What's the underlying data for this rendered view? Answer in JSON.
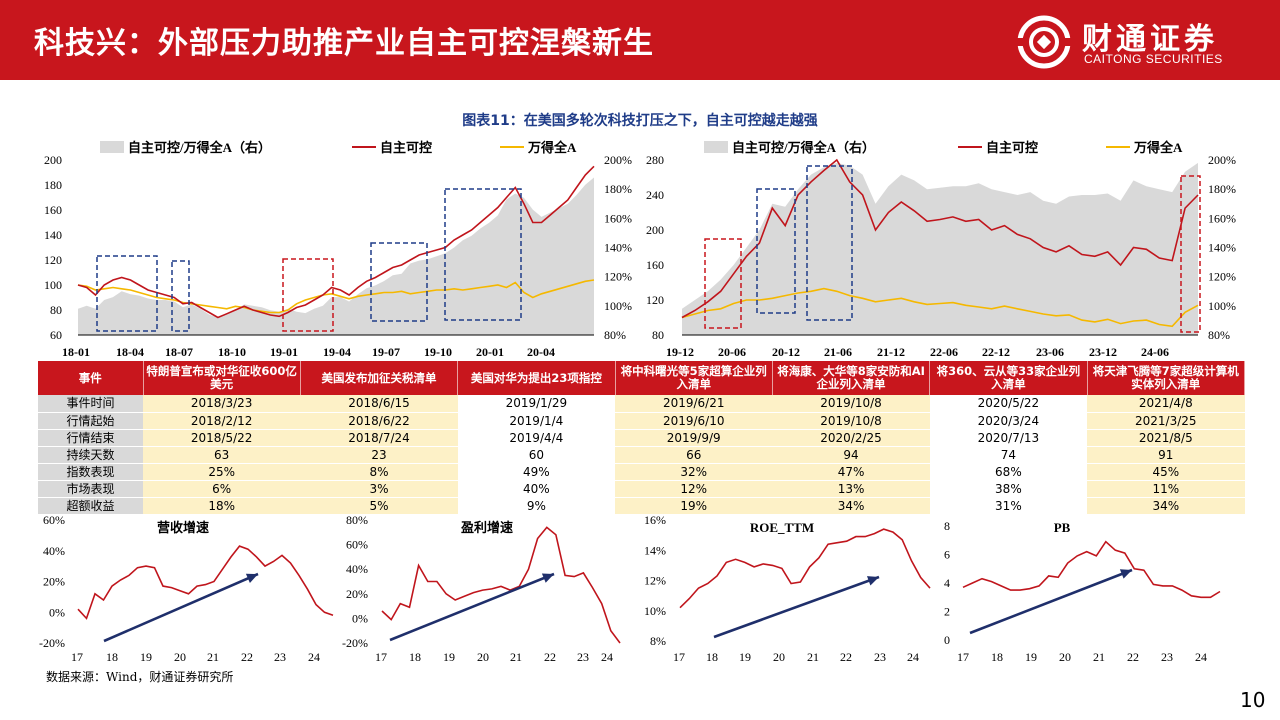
{
  "header": {
    "title": "科技兴：外部压力助推产业自主可控涅槃新生",
    "logo_text": "财通证券",
    "logo_subtext": "CAITONG SECURITIES",
    "brand_color": "#c8161d"
  },
  "figure_title": "图表11：在美国多轮次科技打压之下，自主可控越走越强",
  "chart_data": [
    {
      "type": "line",
      "left_axis": {
        "ticks": [
          "200",
          "180",
          "160",
          "140",
          "120",
          "100",
          "80",
          "60"
        ],
        "ylim": [
          60,
          200
        ]
      },
      "right_axis": {
        "ticks": [
          "200%",
          "180%",
          "160%",
          "140%",
          "120%",
          "100%",
          "80%"
        ],
        "ylim": [
          80,
          200
        ]
      },
      "x_ticks": [
        "18-01",
        "18-04",
        "18-07",
        "18-10",
        "19-01",
        "19-04",
        "19-07",
        "19-10",
        "20-01",
        "20-04"
      ],
      "legend": [
        "自主可控/万得全A（右）",
        "自主可控",
        "万得全A"
      ],
      "series": [
        {
          "name": "自主可控",
          "color": "#c0151c",
          "values": [
            100,
            98,
            92,
            100,
            104,
            106,
            104,
            100,
            96,
            94,
            92,
            90,
            85,
            86,
            82,
            78,
            74,
            77,
            80,
            83,
            80,
            78,
            76,
            75,
            78,
            82,
            84,
            88,
            92,
            98,
            96,
            92,
            98,
            103,
            106,
            110,
            114,
            116,
            120,
            124,
            126,
            128,
            130,
            136,
            140,
            144,
            150,
            156,
            162,
            170,
            178,
            165,
            150,
            150,
            156,
            162,
            168,
            178,
            188,
            195
          ]
        },
        {
          "name": "万得全A",
          "color": "#f5b800",
          "values": [
            100,
            99,
            96,
            97,
            98,
            97,
            96,
            94,
            92,
            90,
            89,
            88,
            86,
            85,
            84,
            83,
            82,
            81,
            83,
            82,
            80,
            79,
            78,
            78,
            80,
            85,
            88,
            90,
            92,
            93,
            91,
            89,
            91,
            92,
            93,
            94,
            94,
            95,
            93,
            94,
            95,
            96,
            96,
            97,
            96,
            97,
            98,
            99,
            100,
            98,
            102,
            94,
            90,
            93,
            95,
            97,
            99,
            101,
            103,
            104
          ]
        },
        {
          "name": "自主可控/万得全A（右）",
          "color": "#d9d9d9",
          "values": [
            98,
            100,
            98,
            104,
            106,
            110,
            108,
            107,
            105,
            104,
            104,
            103,
            99,
            101,
            98,
            94,
            92,
            95,
            97,
            101,
            100,
            99,
            97,
            96,
            98,
            96,
            95,
            98,
            100,
            106,
            106,
            103,
            108,
            112,
            114,
            117,
            121,
            122,
            129,
            131,
            132,
            134,
            136,
            140,
            145,
            148,
            153,
            157,
            162,
            173,
            177,
            174,
            166,
            161,
            164,
            167,
            170,
            176,
            183,
            188
          ]
        }
      ],
      "highlight_boxes": [
        "navy",
        "navy",
        "red",
        "navy",
        "navy"
      ]
    },
    {
      "type": "line",
      "left_axis": {
        "ticks": [
          "280",
          "240",
          "200",
          "160",
          "120",
          "80"
        ],
        "ylim": [
          80,
          280
        ]
      },
      "right_axis": {
        "ticks": [
          "200%",
          "180%",
          "160%",
          "140%",
          "120%",
          "100%",
          "80%"
        ],
        "ylim": [
          80,
          200
        ]
      },
      "x_ticks": [
        "19-12",
        "20-06",
        "20-12",
        "21-06",
        "21-12",
        "22-06",
        "22-12",
        "23-06",
        "23-12",
        "24-06"
      ],
      "legend": [
        "自主可控/万得全A（右）",
        "自主可控",
        "万得全A"
      ],
      "series": [
        {
          "name": "自主可控",
          "color": "#c0151c",
          "values": [
            100,
            108,
            118,
            130,
            150,
            170,
            185,
            225,
            205,
            240,
            255,
            268,
            280,
            255,
            240,
            200,
            220,
            232,
            222,
            210,
            212,
            215,
            210,
            212,
            200,
            205,
            195,
            190,
            180,
            175,
            182,
            172,
            170,
            175,
            160,
            180,
            178,
            168,
            165,
            225,
            240
          ]
        },
        {
          "name": "万得全A",
          "color": "#f5b800",
          "values": [
            100,
            104,
            108,
            110,
            116,
            120,
            120,
            122,
            125,
            128,
            130,
            133,
            130,
            125,
            122,
            118,
            120,
            122,
            118,
            115,
            116,
            117,
            114,
            112,
            110,
            113,
            110,
            107,
            104,
            102,
            103,
            97,
            95,
            98,
            93,
            96,
            97,
            92,
            90,
            106,
            114
          ]
        },
        {
          "name": "自主可控/万得全A（右）",
          "color": "#d9d9d9",
          "values": [
            98,
            104,
            110,
            118,
            128,
            140,
            152,
            170,
            168,
            180,
            190,
            195,
            198,
            196,
            190,
            170,
            182,
            190,
            186,
            180,
            181,
            182,
            182,
            184,
            180,
            178,
            176,
            178,
            172,
            170,
            175,
            176,
            176,
            177,
            172,
            186,
            182,
            180,
            178,
            192,
            198
          ]
        }
      ],
      "highlight_boxes": [
        "red",
        "navy",
        "navy",
        "red"
      ]
    },
    {
      "type": "line",
      "title": "营收增速",
      "y_ticks": [
        "60%",
        "40%",
        "20%",
        "0%",
        "-20%"
      ],
      "ylim": [
        -20,
        60
      ],
      "x_ticks": [
        "17",
        "18",
        "19",
        "20",
        "21",
        "22",
        "23",
        "24"
      ],
      "values": [
        2,
        -4,
        12,
        8,
        17,
        21,
        24,
        29,
        30,
        29,
        17,
        16,
        14,
        12,
        17,
        18,
        20,
        28,
        36,
        43,
        41,
        36,
        30,
        33,
        37,
        32,
        24,
        15,
        5,
        0,
        -2
      ]
    },
    {
      "type": "line",
      "title": "盈利增速",
      "y_ticks": [
        "80%",
        "60%",
        "40%",
        "20%",
        "0%",
        "-20%"
      ],
      "ylim": [
        -20,
        80
      ],
      "x_ticks": [
        "17",
        "18",
        "19",
        "20",
        "21",
        "22",
        "23",
        "24"
      ],
      "values": [
        6,
        -1,
        12,
        9,
        43,
        30,
        30,
        20,
        15,
        18,
        21,
        23,
        24,
        26,
        23,
        26,
        40,
        65,
        74,
        68,
        35,
        34,
        37,
        25,
        12,
        -10,
        -20
      ]
    },
    {
      "type": "line",
      "title": "ROE_TTM",
      "y_ticks": [
        "16%",
        "14%",
        "12%",
        "10%",
        "8%"
      ],
      "ylim": [
        8,
        16
      ],
      "x_ticks": [
        "17",
        "18",
        "19",
        "20",
        "21",
        "22",
        "23",
        "24"
      ],
      "values": [
        10.2,
        10.8,
        11.5,
        11.8,
        12.3,
        13.2,
        13.4,
        13.2,
        12.9,
        13.1,
        13.0,
        12.8,
        11.8,
        11.9,
        12.9,
        13.5,
        14.4,
        14.5,
        14.6,
        14.9,
        14.9,
        15.1,
        15.4,
        15.2,
        14.7,
        13.3,
        12.2,
        11.5
      ]
    },
    {
      "type": "line",
      "title": "PB",
      "y_ticks": [
        "8",
        "6",
        "4",
        "2",
        "0"
      ],
      "ylim": [
        0,
        8
      ],
      "x_ticks": [
        "17",
        "18",
        "19",
        "20",
        "21",
        "22",
        "23",
        "24"
      ],
      "values": [
        3.7,
        4.0,
        4.3,
        4.1,
        3.8,
        3.5,
        3.5,
        3.6,
        3.8,
        4.5,
        4.4,
        5.4,
        5.9,
        6.2,
        5.9,
        6.9,
        6.3,
        6.1,
        5.0,
        4.9,
        3.9,
        3.8,
        3.8,
        3.5,
        3.1,
        3.0,
        3.0,
        3.4
      ]
    }
  ],
  "table": {
    "headers": [
      "事件",
      "特朗普宣布或对华征收600亿美元",
      "美国发布加征关税清单",
      "美国对华为提出23项指控",
      "将中科曙光等5家超算企业列入清单",
      "将海康、大华等8家安防和AI企业列入清单",
      "将360、云从等33家企业列入清单",
      "将天津飞腾等7家超级计算机实体列入清单"
    ],
    "rows": [
      {
        "label": "事件时间",
        "cells": [
          "2018/3/23",
          "2018/6/15",
          "2019/1/29",
          "2019/6/21",
          "2019/10/8",
          "2020/5/22",
          "2021/4/8"
        ]
      },
      {
        "label": "行情起始",
        "cells": [
          "2018/2/12",
          "2018/6/22",
          "2019/1/4",
          "2019/6/10",
          "2019/10/8",
          "2020/3/24",
          "2021/3/25"
        ]
      },
      {
        "label": "行情结束",
        "cells": [
          "2018/5/22",
          "2018/7/24",
          "2019/4/4",
          "2019/9/9",
          "2020/2/25",
          "2020/7/13",
          "2021/8/5"
        ]
      },
      {
        "label": "持续天数",
        "cells": [
          "63",
          "23",
          "60",
          "66",
          "94",
          "74",
          "91"
        ]
      },
      {
        "label": "指数表现",
        "cells": [
          "25%",
          "8%",
          "49%",
          "32%",
          "47%",
          "68%",
          "45%"
        ]
      },
      {
        "label": "市场表现",
        "cells": [
          "6%",
          "3%",
          "40%",
          "12%",
          "13%",
          "38%",
          "11%"
        ]
      },
      {
        "label": "超额收益",
        "cells": [
          "18%",
          "5%",
          "9%",
          "19%",
          "34%",
          "31%",
          "34%"
        ]
      }
    ]
  },
  "source": "数据来源：Wind，财通证券研究所",
  "page_number": "10"
}
